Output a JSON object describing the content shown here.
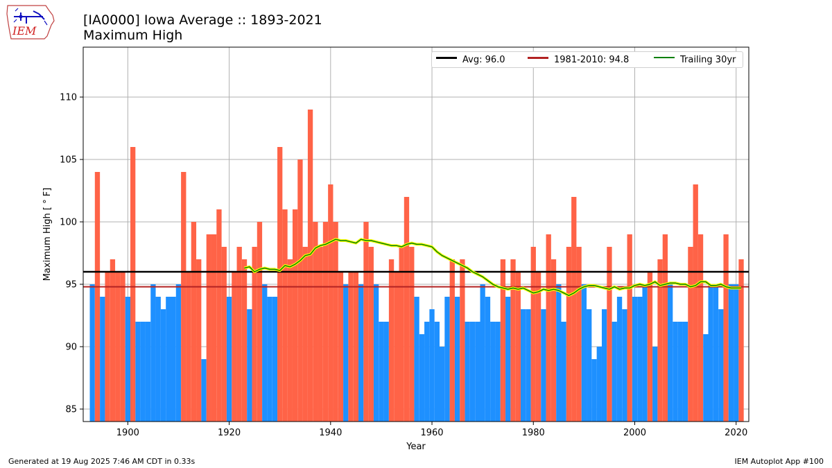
{
  "header": {
    "title_line1": "[IA0000] Iowa Average :: 1893-2021",
    "title_line2": "Maximum High"
  },
  "logo": {
    "text": "IEM"
  },
  "footer": {
    "left": "Generated at 19 Aug 2025 7:46 AM CDT in 0.33s",
    "right": "IEM Autoplot App #100"
  },
  "colors": {
    "above": "#ff6347",
    "below": "#1e90ff",
    "avg_line": "#000000",
    "climo_line": "#b22222",
    "trailing": "#008000",
    "trailing_halo": "#ffff00",
    "grid": "#b0b0b0"
  },
  "legend": {
    "avg": "Avg: 96.0",
    "climo": "1981-2010: 94.8",
    "trailing": "Trailing 30yr"
  },
  "chart_data": {
    "type": "bar",
    "title": "[IA0000] Iowa Average :: 1893-2021\nMaximum High",
    "xlabel": "Year",
    "ylabel": "Maximum High [ ° F]",
    "xlim": [
      1891.2,
      2022.5
    ],
    "ylim": [
      84,
      114
    ],
    "xticks": [
      1900,
      1920,
      1940,
      1960,
      1980,
      2000,
      2020
    ],
    "yticks": [
      85,
      90,
      95,
      100,
      105,
      110
    ],
    "grid": true,
    "legend_position": "top-right",
    "average": 96.0,
    "climatology_1981_2010": 94.8,
    "years": [
      1893,
      1894,
      1895,
      1896,
      1897,
      1898,
      1899,
      1900,
      1901,
      1902,
      1903,
      1904,
      1905,
      1906,
      1907,
      1908,
      1909,
      1910,
      1911,
      1912,
      1913,
      1914,
      1915,
      1916,
      1917,
      1918,
      1919,
      1920,
      1921,
      1922,
      1923,
      1924,
      1925,
      1926,
      1927,
      1928,
      1929,
      1930,
      1931,
      1932,
      1933,
      1934,
      1935,
      1936,
      1937,
      1938,
      1939,
      1940,
      1941,
      1942,
      1943,
      1944,
      1945,
      1946,
      1947,
      1948,
      1949,
      1950,
      1951,
      1952,
      1953,
      1954,
      1955,
      1956,
      1957,
      1958,
      1959,
      1960,
      1961,
      1962,
      1963,
      1964,
      1965,
      1966,
      1967,
      1968,
      1969,
      1970,
      1971,
      1972,
      1973,
      1974,
      1975,
      1976,
      1977,
      1978,
      1979,
      1980,
      1981,
      1982,
      1983,
      1984,
      1985,
      1986,
      1987,
      1988,
      1989,
      1990,
      1991,
      1992,
      1993,
      1994,
      1995,
      1996,
      1997,
      1998,
      1999,
      2000,
      2001,
      2002,
      2003,
      2004,
      2005,
      2006,
      2007,
      2008,
      2009,
      2010,
      2011,
      2012,
      2013,
      2014,
      2015,
      2016,
      2017,
      2018,
      2019,
      2020,
      2021
    ],
    "values": [
      95,
      104,
      94,
      96,
      97,
      96,
      96,
      94,
      106,
      92,
      92,
      92,
      95,
      94,
      93,
      94,
      94,
      95,
      104,
      96,
      100,
      97,
      89,
      99,
      99,
      101,
      98,
      94,
      96,
      98,
      97,
      93,
      98,
      100,
      95,
      94,
      94,
      106,
      101,
      97,
      101,
      105,
      98,
      109,
      100,
      98,
      100,
      103,
      100,
      96,
      95,
      96,
      96,
      95,
      100,
      98,
      95,
      92,
      92,
      97,
      96,
      98,
      102,
      98,
      94,
      91,
      92,
      93,
      92,
      90,
      94,
      97,
      94,
      97,
      92,
      92,
      92,
      95,
      94,
      92,
      92,
      97,
      94,
      97,
      96,
      93,
      93,
      98,
      96,
      93,
      99,
      97,
      95,
      92,
      98,
      102,
      98,
      95,
      93,
      89,
      90,
      93,
      98,
      92,
      94,
      93,
      99,
      94,
      94,
      95,
      96,
      90,
      97,
      99,
      95,
      92,
      92,
      92,
      98,
      103,
      99,
      91,
      95,
      95,
      93,
      99,
      95,
      95,
      97
    ],
    "trailing_years": [
      1923,
      1924,
      1925,
      1926,
      1927,
      1928,
      1929,
      1930,
      1931,
      1932,
      1933,
      1934,
      1935,
      1936,
      1937,
      1938,
      1939,
      1940,
      1941,
      1942,
      1943,
      1944,
      1945,
      1946,
      1947,
      1948,
      1949,
      1950,
      1951,
      1952,
      1953,
      1954,
      1955,
      1956,
      1957,
      1958,
      1959,
      1960,
      1961,
      1962,
      1963,
      1964,
      1965,
      1966,
      1967,
      1968,
      1969,
      1970,
      1971,
      1972,
      1973,
      1974,
      1975,
      1976,
      1977,
      1978,
      1979,
      1980,
      1981,
      1982,
      1983,
      1984,
      1985,
      1986,
      1987,
      1988,
      1989,
      1990,
      1991,
      1992,
      1993,
      1994,
      1995,
      1996,
      1997,
      1998,
      1999,
      2000,
      2001,
      2002,
      2003,
      2004,
      2005,
      2006,
      2007,
      2008,
      2009,
      2010,
      2011,
      2012,
      2013,
      2014,
      2015,
      2016,
      2017,
      2018,
      2019,
      2020,
      2021
    ],
    "trailing_values": [
      96.3,
      96.4,
      96.0,
      96.2,
      96.3,
      96.2,
      96.2,
      96.1,
      96.5,
      96.4,
      96.6,
      96.9,
      97.3,
      97.4,
      97.9,
      98.1,
      98.2,
      98.4,
      98.6,
      98.5,
      98.5,
      98.4,
      98.3,
      98.6,
      98.5,
      98.5,
      98.4,
      98.3,
      98.2,
      98.1,
      98.1,
      98.0,
      98.2,
      98.3,
      98.2,
      98.2,
      98.1,
      98.0,
      97.6,
      97.3,
      97.1,
      96.9,
      96.7,
      96.5,
      96.3,
      96.0,
      95.8,
      95.6,
      95.3,
      95.0,
      94.8,
      94.7,
      94.6,
      94.7,
      94.6,
      94.7,
      94.5,
      94.3,
      94.4,
      94.6,
      94.5,
      94.6,
      94.5,
      94.3,
      94.1,
      94.3,
      94.6,
      94.8,
      94.9,
      94.9,
      94.8,
      94.7,
      94.6,
      94.8,
      94.6,
      94.7,
      94.7,
      94.9,
      95.0,
      94.9,
      95.0,
      95.2,
      94.9,
      95.0,
      95.1,
      95.1,
      95.0,
      95.0,
      94.8,
      94.9,
      95.2,
      95.2,
      94.9,
      94.9,
      95.0,
      94.8,
      94.7,
      94.7,
      94.7
    ]
  }
}
